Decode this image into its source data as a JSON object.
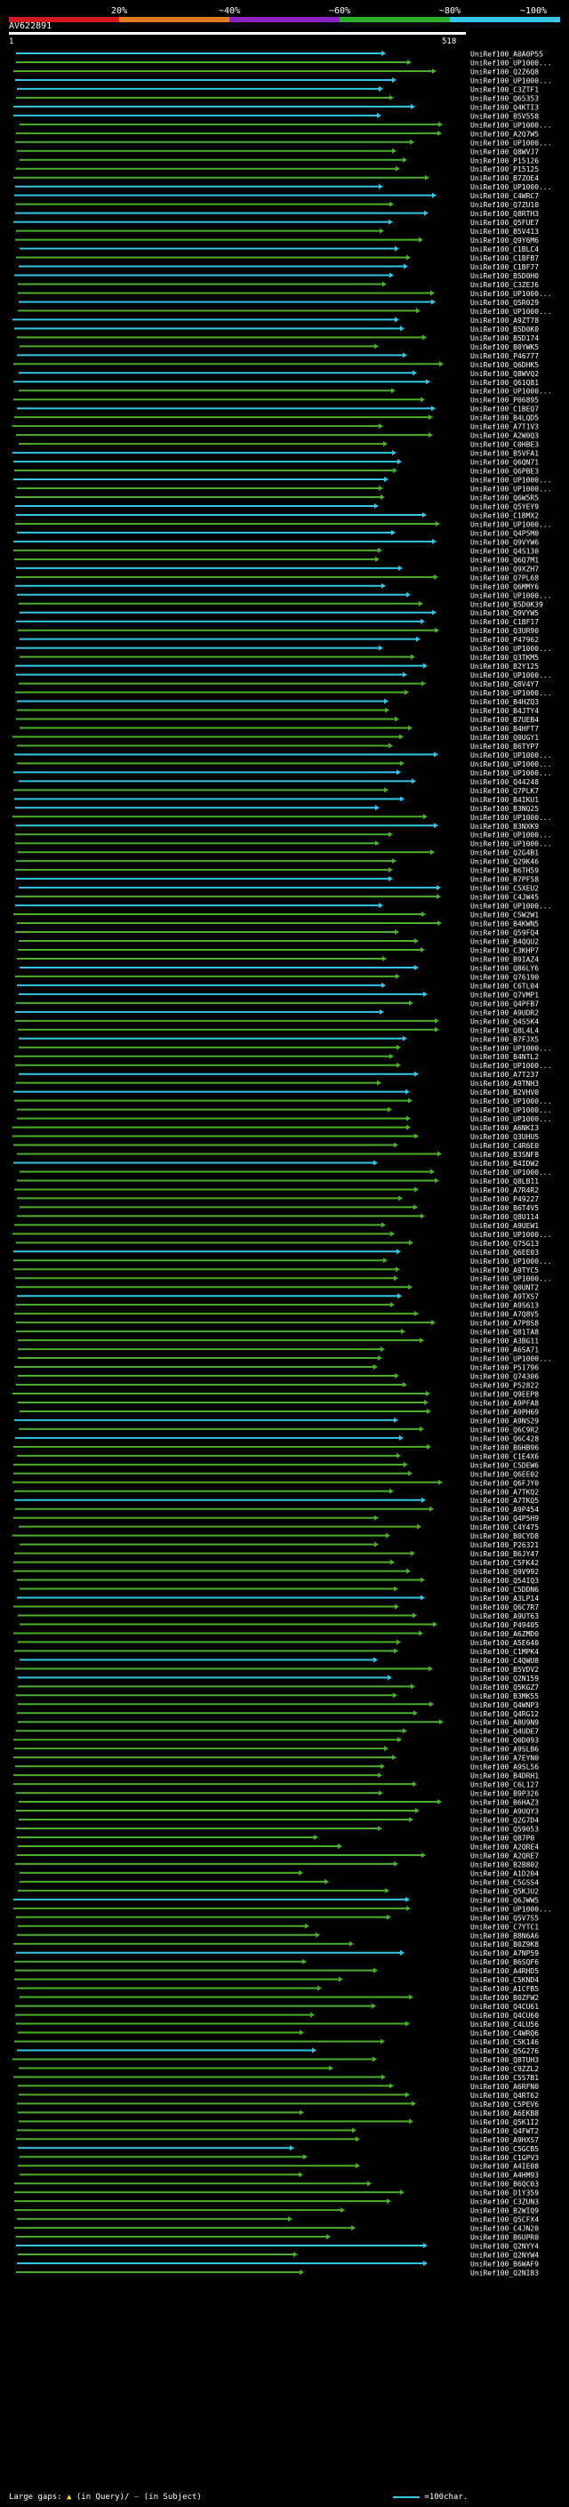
{
  "scale": {
    "labels": [
      "20%",
      "~40%",
      "~60%",
      "~80%",
      "~100%"
    ],
    "colors": [
      "#d4161d",
      "#e07b1f",
      "#8b22c1",
      "#2cb02c",
      "#35c6e8"
    ]
  },
  "query": {
    "title": "AV622891",
    "start": "1",
    "end": "518"
  },
  "hits": [
    "UniRef100_A0A0P55",
    "UniRef100_UP1000...",
    "UniRef100_Q2Z6Q8",
    "UniRef100_UP1000...",
    "UniRef100_C3ZTF1",
    "UniRef100_Q65353",
    "UniRef100_Q4KTI3",
    "UniRef100_B5V558",
    "UniRef100_UP1000...",
    "UniRef100_A2Q7W5",
    "UniRef100_UP1000...",
    "UniRef100_Q8WVJ7",
    "UniRef100_P15126",
    "UniRef100_P15125",
    "UniRef100_B7ZOE4",
    "UniRef100_UP1000...",
    "UniRef100_C4WRC7",
    "UniRef100_Q7ZU10",
    "UniRef100_Q8RTH3",
    "UniRef100_Q5FUE7",
    "UniRef100_B5V413",
    "UniRef100_Q9Y6M6",
    "UniRef100_C1BLC4",
    "UniRef100_C1BFB7",
    "UniRef100_C1BF77",
    "UniRef100_B5D0H0",
    "UniRef100_C3ZEJ6",
    "UniRef100_UP1000...",
    "UniRef100_Q5R029",
    "UniRef100_UP1000...",
    "UniRef100_A9ZT78",
    "UniRef100_B5D0K0",
    "UniRef100_B5D174",
    "UniRef100_B0YWK5",
    "UniRef100_P46777",
    "UniRef100_Q6DHK5",
    "UniRef100_Q8WVQ2",
    "UniRef100_Q61Q81",
    "UniRef100_UP1000...",
    "UniRef100_P06895",
    "UniRef100_C1BEQ7",
    "UniRef100_B4LQD5",
    "UniRef100_A7T1V3",
    "UniRef100_A2W0Q3",
    "UniRef100_C0HBE3",
    "UniRef100_B5VFA1",
    "UniRef100_Q6QN71",
    "UniRef100_Q6PBE3",
    "UniRef100_UP1000...",
    "UniRef100_UP1000...",
    "UniRef100_Q6W5R5",
    "UniRef100_Q5YEY9",
    "UniRef100_C1BMX2",
    "UniRef100_UP1000...",
    "UniRef100_Q4P5M0",
    "UniRef100_Q9VYW6",
    "UniRef100_Q4S130",
    "UniRef100_Q6Q7M1",
    "UniRef100_Q9XZH7",
    "UniRef100_Q7PL68",
    "UniRef100_Q6MMY6",
    "UniRef100_UP1000...",
    "UniRef100_B5D0K39",
    "UniRef100_Q9VYW5",
    "UniRef100_C1BF17",
    "UniRef100_Q3UR90",
    "UniRef100_P47962",
    "UniRef100_UP1000...",
    "UniRef100_Q3TKM5",
    "UniRef100_B2Y125",
    "UniRef100_UP1000...",
    "UniRef100_Q8V4Y7",
    "UniRef100_UP1000...",
    "UniRef100_B4HZQ3",
    "UniRef100_B4JTY4",
    "UniRef100_B7UEB4",
    "UniRef100_B4HFT7",
    "UniRef100_Q0UGY1",
    "UniRef100_B6TYP7",
    "UniRef100_UP1000...",
    "UniRef100_UP1000...",
    "UniRef100_UP1000...",
    "UniRef100_Q44248",
    "UniRef100_Q7PLK7",
    "UniRef100_B4IKU1",
    "UniRef100_B3NQ25",
    "UniRef100_UP1000...",
    "UniRef100_B3NXK9",
    "UniRef100_UP1000...",
    "UniRef100_UP1000...",
    "UniRef100_Q2G4B1",
    "UniRef100_Q29K46",
    "UniRef100_B6TH59",
    "UniRef100_B7PF58",
    "UniRef100_C5XEU2",
    "UniRef100_C4JW45",
    "UniRef100_UP1000...",
    "UniRef100_C5W2W1",
    "UniRef100_B4KWN5",
    "UniRef100_Q59FQ4",
    "UniRef100_B4QQU2",
    "UniRef100_C3KHP7",
    "UniRef100_B9IAZ4",
    "UniRef100_Q86LY6",
    "UniRef100_Q76190",
    "UniRef100_C6TL04",
    "UniRef100_Q7VMP1",
    "UniRef100_Q4PFB7",
    "UniRef100_A9UDR2",
    "UniRef100_Q4S5K4",
    "UniRef100_Q8L4L4",
    "UniRef100_B7FJX5",
    "UniRef100_UP1000...",
    "UniRef100_B4NTL2",
    "UniRef100_UP1000...",
    "UniRef100_A7T237",
    "UniRef100_A9TNH3",
    "UniRef100_B2VHV0",
    "UniRef100_UP1000...",
    "UniRef100_UP1000...",
    "UniRef100_UP1000...",
    "UniRef100_A6NKI3",
    "UniRef100_Q3UHU5",
    "UniRef100_C4R6E0",
    "UniRef100_B3SNF8",
    "UniRef100_B4IDW2",
    "UniRef100_UP1000...",
    "UniRef100_Q8LB11",
    "UniRef100_A7R4R2",
    "UniRef100_P49227",
    "UniRef100_B6T4V5",
    "UniRef100_Q8U114",
    "UniRef100_A9UEW1",
    "UniRef100_UP1000...",
    "UniRef100_Q75G13",
    "UniRef100_Q6EE03",
    "UniRef100_UP1000...",
    "UniRef100_A9TYC5",
    "UniRef100_UP1000...",
    "UniRef100_Q0UNT2",
    "UniRef100_A9TXS7",
    "UniRef100_A9S613",
    "UniRef100_A7Q8V5",
    "UniRef100_A7P8S8",
    "UniRef100_Q81TA8",
    "UniRef100_A3BG11",
    "UniRef100_A6SA71",
    "UniRef100_UP1000...",
    "UniRef100_P51796",
    "UniRef100_Q74306",
    "UniRef100_P52822",
    "UniRef100_Q9EEP8",
    "UniRef100_A9PFA8",
    "UniRef100_A9PH69",
    "UniRef100_A9NS29",
    "UniRef100_Q6C9R2",
    "UniRef100_Q6C428",
    "UniRef100_B6HB96",
    "UniRef100_C1E4X6",
    "UniRef100_C5DEW6",
    "UniRef100_Q6EE02",
    "UniRef100_Q6FJY0",
    "UniRef100_A7TKQ2",
    "UniRef100_A7TKQ5",
    "UniRef100_A9P454",
    "UniRef100_Q4P5H9",
    "UniRef100_C4Y475",
    "UniRef100_B0CYD8",
    "UniRef100_P26321",
    "UniRef100_B6JY47",
    "UniRef100_C5FK42",
    "UniRef100_Q9V992",
    "UniRef100_Q54IQ3",
    "UniRef100_C5DDN6",
    "UniRef100_A3LP14",
    "UniRef100_Q6C7R7",
    "UniRef100_A9UT63",
    "UniRef100_P49405",
    "UniRef100_A6ZMD0",
    "UniRef100_A5E640",
    "UniRef100_C1MPK4",
    "UniRef100_C4QWU8",
    "UniRef100_B5VDV2",
    "UniRef100_Q2N159",
    "UniRef100_Q5KGZ7",
    "UniRef100_B3MK55",
    "UniRef100_Q4WNP3",
    "UniRef100_Q4RG12",
    "UniRef100_A8U9N9",
    "UniRef100_Q4UDE7",
    "UniRef100_Q0D093",
    "UniRef100_A9SLB6",
    "UniRef100_A7EYN0",
    "UniRef100_A9SL56",
    "UniRef100_B4DRH1",
    "UniRef100_C6L127",
    "UniRef100_B9P326",
    "UniRef100_B6HAZ3",
    "UniRef100_A9UQY3",
    "UniRef100_Q2G7D4",
    "UniRef100_Q59053",
    "UniRef100_Q87P0",
    "UniRef100_A2QRE4",
    "UniRef100_A2QRE7",
    "UniRef100_B2B802",
    "UniRef100_A1D204",
    "UniRef100_C5GSS4",
    "UniRef100_Q5KJU2",
    "UniRef100_Q6JWW5",
    "UniRef100_UP1000...",
    "UniRef100_Q5V7S5",
    "UniRef100_C7YTC1",
    "UniRef100_B8N6A6",
    "UniRef100_B0Z9K8",
    "UniRef100_A7NP59",
    "UniRef100_B6SQF6",
    "UniRef100_A4RHD5",
    "UniRef100_C5KND4",
    "UniRef100_A1CFB5",
    "UniRef100_B0ZFW2",
    "UniRef100_Q4CU61",
    "UniRef100_Q4CU60",
    "UniRef100_C4LU56",
    "UniRef100_C4WRQ6",
    "UniRef100_C5K146",
    "UniRef100_Q5G276",
    "UniRef100_Q8TUH3",
    "UniRef100_C9ZZL2",
    "UniRef100_C5S7B1",
    "UniRef100_A6RFN0",
    "UniRef100_Q4RT62",
    "UniRef100_C5PEV6",
    "UniRef100_A6EKB8",
    "UniRef100_Q5K1I2",
    "UniRef100_Q4FWT2",
    "UniRef100_A9HXS7",
    "UniRef100_C5GCB5",
    "UniRef100_C1GPV3",
    "UniRef100_A4IE08",
    "UniRef100_A4HM93",
    "UniRef100_B6QC03",
    "UniRef100_D1Y359",
    "UniRef100_C3ZUN3",
    "UniRef100_B2WIQ9",
    "UniRef100_Q5CFX4",
    "UniRef100_C4JN20",
    "UniRef100_B6UPR0",
    "UniRef100_Q2NYY4",
    "UniRef100_Q2NYW4",
    "UniRef100_B6WAF9",
    "UniRef100_Q2NI83"
  ],
  "footer": {
    "large_gaps_label": "Large gaps:",
    "query_gap_text": "(in Query)/",
    "subject_gap_text": "(in Subject)",
    "scale_text": "=100char."
  }
}
